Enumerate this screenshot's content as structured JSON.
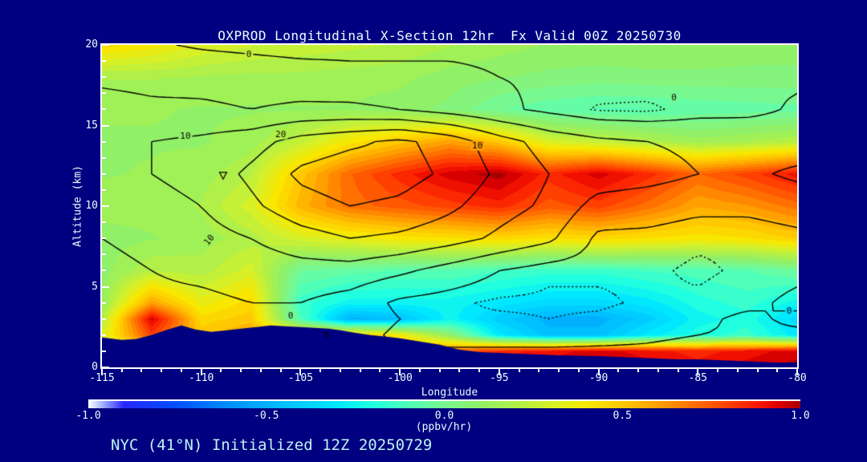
{
  "title": "OXPROD Longitudinal X-Section 12hr  Fx Valid 00Z 20250730",
  "footer": "NYC (41°N) Initialized 12Z 20250729",
  "axes": {
    "x": {
      "label": "Longitude",
      "min": -115,
      "max": -80,
      "major_ticks": [
        -115,
        -110,
        -105,
        -100,
        -95,
        -90,
        -85,
        -80
      ],
      "minor_step": 1
    },
    "y": {
      "label": "Altitude (km)",
      "min": 0,
      "max": 20,
      "major_ticks": [
        0,
        5,
        10,
        15,
        20
      ],
      "minor_step": 1
    }
  },
  "colorbar": {
    "min": -1.0,
    "max": 1.0,
    "tick_labels": [
      "-1.0",
      "-0.5",
      "0.0",
      "0.5",
      "1.0"
    ],
    "tick_values": [
      -1.0,
      -0.5,
      0.0,
      0.5,
      1.0
    ],
    "units_label": "(ppbv/hr)"
  },
  "colors": {
    "background": "#000080",
    "frame": "#ffffff",
    "title_text": "#e8ffff",
    "tick_text": "#e8ffff",
    "footer_text": "#bef2f2",
    "contour_line": "#000000",
    "terrain": "#000080"
  },
  "chart_data": {
    "type": "heatmap",
    "title": "OXPROD Longitudinal X-Section 12hr  Fx Valid 00Z 20250730",
    "xlabel": "Longitude",
    "ylabel": "Altitude (km)",
    "xlim": [
      -115,
      -80
    ],
    "ylim": [
      0,
      20
    ],
    "fill_units": "ppbv/hr",
    "fill_range": [
      -1.0,
      1.0
    ],
    "x_lons": [
      -115,
      -112.5,
      -110,
      -107.5,
      -105,
      -102.5,
      -100,
      -97.5,
      -95,
      -92.5,
      -90,
      -87.5,
      -85,
      -82.5,
      -80
    ],
    "y_alts_km": [
      20,
      18,
      16,
      14,
      12,
      10,
      8,
      6,
      4,
      3,
      2,
      1,
      0
    ],
    "fill_values": [
      [
        0.45,
        0.4,
        0.32,
        0.28,
        0.26,
        0.24,
        0.22,
        0.18,
        0.15,
        0.12,
        0.12,
        0.12,
        0.12,
        0.1,
        0.1
      ],
      [
        0.18,
        0.18,
        0.17,
        0.16,
        0.16,
        0.15,
        0.14,
        0.1,
        0.08,
        0.06,
        0.05,
        0.06,
        0.06,
        0.06,
        0.06
      ],
      [
        0.13,
        0.13,
        0.12,
        0.12,
        0.12,
        0.12,
        0.1,
        0.06,
        -0.02,
        -0.06,
        -0.08,
        -0.08,
        -0.06,
        -0.05,
        -0.04
      ],
      [
        0.12,
        0.12,
        0.12,
        0.15,
        0.25,
        0.4,
        0.5,
        0.6,
        0.5,
        0.3,
        0.25,
        0.2,
        0.15,
        0.18,
        0.22
      ],
      [
        0.12,
        0.13,
        0.15,
        0.22,
        0.5,
        0.72,
        0.85,
        0.95,
        1.0,
        0.85,
        0.95,
        0.85,
        0.72,
        0.8,
        0.9
      ],
      [
        0.15,
        0.15,
        0.18,
        0.3,
        0.55,
        0.7,
        0.75,
        0.8,
        0.85,
        0.75,
        0.8,
        0.7,
        0.58,
        0.62,
        0.7
      ],
      [
        0.1,
        0.12,
        0.15,
        0.2,
        0.3,
        0.35,
        0.4,
        0.42,
        0.45,
        0.42,
        0.45,
        0.42,
        0.4,
        0.42,
        0.48
      ],
      [
        0.1,
        0.22,
        0.2,
        0.3,
        -0.02,
        -0.05,
        -0.08,
        -0.08,
        -0.12,
        -0.15,
        -0.15,
        -0.12,
        -0.1,
        -0.08,
        -0.02
      ],
      [
        0.12,
        0.6,
        0.35,
        0.45,
        -0.15,
        -0.25,
        -0.25,
        -0.25,
        -0.3,
        -0.35,
        -0.35,
        -0.3,
        -0.2,
        -0.15,
        -0.25
      ],
      [
        0.2,
        0.95,
        0.45,
        0.5,
        -0.1,
        -0.5,
        -0.45,
        -0.25,
        -0.4,
        -0.5,
        -0.5,
        -0.4,
        -0.25,
        -0.2,
        -0.35
      ],
      [
        0.3,
        0.8,
        0.5,
        0.6,
        0.5,
        0.5,
        0.4,
        0.1,
        -0.3,
        -0.45,
        -0.45,
        -0.3,
        -0.2,
        -0.15,
        -0.3
      ],
      [
        0.2,
        0.4,
        0.4,
        0.5,
        0.6,
        0.6,
        0.5,
        0.7,
        0.85,
        0.9,
        0.95,
        0.9,
        0.85,
        0.9,
        0.95
      ],
      [
        0.1,
        0.2,
        0.3,
        0.4,
        0.5,
        0.6,
        0.6,
        0.8,
        0.9,
        0.95,
        1.0,
        0.95,
        0.9,
        0.95,
        1.0
      ]
    ],
    "overlay_contour_levels": [
      -2.5,
      0,
      5,
      10,
      15,
      20
    ],
    "overlay_dotted_below": 0,
    "overlay_values": [
      [
        1,
        0.5,
        -0.5,
        -1,
        -1.5,
        -1.5,
        -1,
        -0.5,
        -0.5,
        -1,
        -1,
        -0.5,
        -1,
        -1,
        -1
      ],
      [
        4,
        3.5,
        3,
        2.5,
        2,
        1.5,
        1,
        0.5,
        0,
        -0.5,
        -1,
        -1,
        -0.5,
        -0.5,
        -0.5
      ],
      [
        7,
        6,
        6,
        5,
        6,
        6,
        5,
        3,
        1,
        -1,
        -2.8,
        -3,
        -1.5,
        -1,
        0.5
      ],
      [
        9,
        10,
        11,
        13,
        17,
        19,
        21,
        18,
        12,
        8,
        6,
        5,
        4,
        3,
        2
      ],
      [
        8,
        10,
        12,
        16,
        21,
        23,
        22,
        19,
        14,
        10,
        8,
        7,
        5,
        4,
        6
      ],
      [
        6,
        8,
        10,
        14,
        18,
        20,
        19,
        16,
        12,
        9,
        3,
        2,
        1,
        1,
        2
      ],
      [
        5,
        6,
        8,
        10,
        13,
        15,
        14,
        12,
        9,
        6,
        -1,
        -1,
        -2,
        -2,
        -1
      ],
      [
        4,
        5,
        6,
        7,
        8,
        8,
        6,
        3,
        0,
        -2,
        -2,
        -2,
        -3,
        -2,
        -1
      ],
      [
        3,
        4,
        4,
        5,
        5,
        3,
        -1,
        -2,
        -3,
        -3,
        -3,
        -2,
        -2,
        -1,
        1
      ],
      [
        3,
        4,
        4,
        4,
        4,
        3,
        0,
        -2,
        -2,
        -2.5,
        -2,
        -1,
        -1,
        1,
        -1
      ],
      [
        2,
        3,
        3,
        4,
        3,
        2,
        -1,
        -1.5,
        -1.5,
        -1.5,
        -1,
        -0.5,
        0,
        0.5,
        1
      ],
      [
        2,
        3,
        3,
        3,
        2,
        1,
        0.5,
        0.5,
        0.5,
        0.5,
        0.5,
        0.5,
        1,
        1,
        1.5
      ],
      [
        1,
        2,
        2,
        2,
        2,
        1,
        1,
        1,
        1,
        1,
        1,
        1,
        1,
        1,
        2
      ]
    ],
    "contour_labels": [
      {
        "text": "0",
        "lon": -107.6,
        "alt": 19.4,
        "rot": 0
      },
      {
        "text": "0",
        "lon": -86.2,
        "alt": 16.75,
        "rot": 0
      },
      {
        "text": "10",
        "lon": -110.8,
        "alt": 14.35,
        "rot": 0
      },
      {
        "text": "20",
        "lon": -106.0,
        "alt": 14.45,
        "rot": 0
      },
      {
        "text": "10",
        "lon": -96.1,
        "alt": 13.75,
        "rot": 0
      },
      {
        "text": "10",
        "lon": -109.6,
        "alt": 7.9,
        "rot": -50
      },
      {
        "text": "0",
        "lon": -105.5,
        "alt": 3.2,
        "rot": 0
      },
      {
        "text": "0",
        "lon": -103.7,
        "alt": 2.0,
        "rot": 0
      },
      {
        "text": "0",
        "lon": -80.4,
        "alt": 3.5,
        "rot": 0
      }
    ],
    "marker": {
      "glyph": "triangle-down",
      "lon": -108.9,
      "alt": 11.9
    },
    "terrain_profile": [
      [
        -115,
        1.85
      ],
      [
        -114,
        1.7
      ],
      [
        -113.3,
        1.75
      ],
      [
        -112.5,
        2.0
      ],
      [
        -111.8,
        2.3
      ],
      [
        -111,
        2.6
      ],
      [
        -110.3,
        2.35
      ],
      [
        -109.5,
        2.2
      ],
      [
        -108.7,
        2.3
      ],
      [
        -108,
        2.4
      ],
      [
        -107.2,
        2.5
      ],
      [
        -106.5,
        2.6
      ],
      [
        -105.8,
        2.55
      ],
      [
        -105,
        2.5
      ],
      [
        -104.3,
        2.45
      ],
      [
        -103.6,
        2.4
      ],
      [
        -103,
        2.3
      ],
      [
        -102.3,
        2.15
      ],
      [
        -101.5,
        2.0
      ],
      [
        -100.7,
        1.9
      ],
      [
        -100,
        1.8
      ],
      [
        -99,
        1.6
      ],
      [
        -98,
        1.4
      ],
      [
        -97,
        1.1
      ],
      [
        -96,
        0.95
      ],
      [
        -95,
        0.9
      ],
      [
        -94,
        0.85
      ],
      [
        -93,
        0.8
      ],
      [
        -92,
        0.75
      ],
      [
        -91,
        0.72
      ],
      [
        -90,
        0.7
      ],
      [
        -89,
        0.65
      ],
      [
        -88,
        0.6
      ],
      [
        -87,
        0.55
      ],
      [
        -86,
        0.5
      ],
      [
        -85,
        0.5
      ],
      [
        -84,
        0.45
      ],
      [
        -83,
        0.4
      ],
      [
        -82,
        0.35
      ],
      [
        -81,
        0.3
      ],
      [
        -80,
        0.3
      ]
    ],
    "colormap": [
      [
        -1.0,
        "#ffffff"
      ],
      [
        -0.97,
        "#b8c8ff"
      ],
      [
        -0.9,
        "#2828ff"
      ],
      [
        -0.75,
        "#0050ff"
      ],
      [
        -0.6,
        "#0090ff"
      ],
      [
        -0.45,
        "#00c0ff"
      ],
      [
        -0.3,
        "#00e8ff"
      ],
      [
        -0.2,
        "#20ffe0"
      ],
      [
        -0.1,
        "#50ffb8"
      ],
      [
        0.0,
        "#78f890"
      ],
      [
        0.1,
        "#90f068"
      ],
      [
        0.2,
        "#b0f048"
      ],
      [
        0.3,
        "#d8f028"
      ],
      [
        0.4,
        "#f8e800"
      ],
      [
        0.5,
        "#ffc800"
      ],
      [
        0.6,
        "#ffa000"
      ],
      [
        0.7,
        "#ff7000"
      ],
      [
        0.8,
        "#ff4000"
      ],
      [
        0.88,
        "#f81800"
      ],
      [
        0.94,
        "#e00000"
      ],
      [
        1.0,
        "#a80000"
      ]
    ]
  }
}
